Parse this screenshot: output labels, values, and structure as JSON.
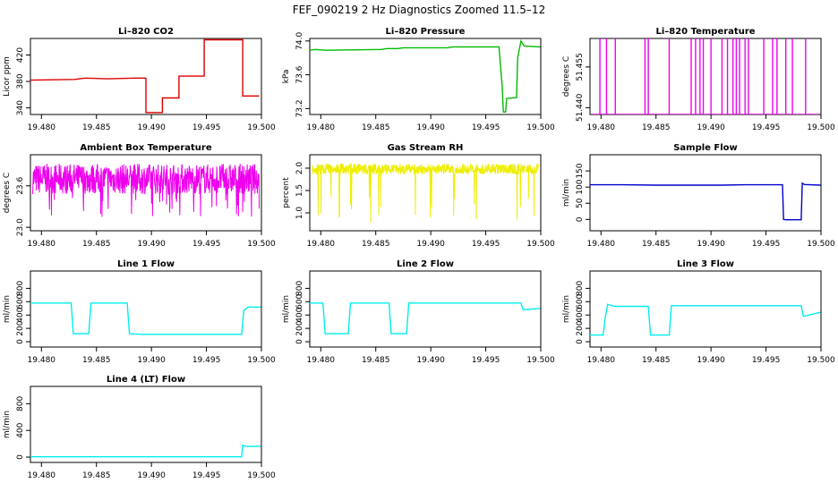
{
  "page": {
    "title": "FEF_090219  2 Hz Diagnostics Zoomed 11.5–12"
  },
  "chart_data": [
    {
      "type": "line",
      "title": "Li–820 CO2",
      "ylabel": "Licor ppm",
      "color": "#dd0000",
      "xlim": [
        19.479,
        19.5
      ],
      "ylim": [
        330,
        445
      ],
      "xticks": [
        "19.480",
        "19.485",
        "19.490",
        "19.495",
        "19.500"
      ],
      "yticks": [
        [
          "340",
          340
        ],
        [
          "380",
          380
        ],
        [
          "420",
          420
        ]
      ],
      "series": [
        {
          "x": [
            19.479,
            19.483,
            19.484,
            19.486,
            19.4885,
            19.4895,
            19.4895,
            19.491,
            19.491,
            19.4925,
            19.4925,
            19.4948,
            19.4948,
            19.4983,
            19.4983,
            19.4998
          ],
          "y": [
            382,
            383,
            385,
            384,
            385,
            385,
            333,
            333,
            355,
            355,
            388,
            388,
            443,
            443,
            358,
            358
          ]
        }
      ]
    },
    {
      "type": "line",
      "title": "Li–820 Pressure",
      "ylabel": "kPa",
      "color": "#00bb00",
      "xlim": [
        19.479,
        19.5
      ],
      "ylim": [
        73.13,
        74.03
      ],
      "xticks": [
        "19.480",
        "19.485",
        "19.490",
        "19.495",
        "19.500"
      ],
      "yticks": [
        [
          "73.2",
          73.2
        ],
        [
          "73.6",
          73.6
        ],
        [
          "74.0",
          74.0
        ]
      ],
      "series": [
        {
          "x": [
            19.479,
            19.4795,
            19.4805,
            19.4855,
            19.486,
            19.487,
            19.4875,
            19.49,
            19.4915,
            19.492,
            19.494,
            19.4962,
            19.4965,
            19.4966,
            19.4968,
            19.4969,
            19.4978,
            19.4979,
            19.4982,
            19.4985,
            19.49995
          ],
          "y": [
            73.89,
            73.9,
            73.89,
            73.9,
            73.91,
            73.91,
            73.92,
            73.92,
            73.92,
            73.93,
            73.93,
            73.93,
            73.45,
            73.16,
            73.16,
            73.32,
            73.33,
            73.8,
            74.0,
            73.94,
            73.93
          ]
        }
      ]
    },
    {
      "type": "line",
      "title": "Li–820 Temperature",
      "ylabel": "degrees C",
      "color": "#ee00ee",
      "xlim": [
        19.479,
        19.5
      ],
      "ylim": [
        51.4375,
        51.4655
      ],
      "xticks": [
        "19.480",
        "19.485",
        "19.490",
        "19.495",
        "19.500"
      ],
      "yticks": [
        [
          "51.440",
          51.44
        ],
        [
          "51.455",
          51.455
        ]
      ],
      "baseline": 51.4375,
      "spikes": [
        19.4799,
        19.4805,
        19.4813,
        19.484,
        19.4843,
        19.4862,
        19.4882,
        19.4886,
        19.489,
        19.4893,
        19.49,
        19.491,
        19.4915,
        19.492,
        19.4923,
        19.4926,
        19.4931,
        19.4934,
        19.4948,
        19.4956,
        19.496,
        19.4968,
        19.4974,
        19.4986
      ]
    },
    {
      "type": "line",
      "title": "Ambient Box Temperature",
      "ylabel": "degrees C",
      "color": "#ee00ee",
      "xlim": [
        19.479,
        19.5
      ],
      "ylim": [
        22.95,
        24.05
      ],
      "xticks": [
        "19.480",
        "19.485",
        "19.490",
        "19.495",
        "19.500"
      ],
      "yticks": [
        [
          "23.0",
          23.0
        ],
        [
          "23.6",
          23.6
        ]
      ],
      "noise": {
        "center": 23.7,
        "amp": 0.22,
        "seed": 7,
        "n": 700,
        "outlier": 0.55
      }
    },
    {
      "type": "line",
      "title": "Gas Stream RH",
      "ylabel": "percent",
      "color": "#eeee00",
      "xlim": [
        19.479,
        19.5
      ],
      "ylim": [
        0.6,
        2.3
      ],
      "xticks": [
        "19.480",
        "19.485",
        "19.490",
        "19.495",
        "19.500"
      ],
      "yticks": [
        [
          "1.0",
          1.0
        ],
        [
          "1.5",
          1.5
        ],
        [
          "2.0",
          2.0
        ]
      ],
      "noise": {
        "center": 1.98,
        "amp": 0.12,
        "seed": 11,
        "n": 700,
        "outlier": 1.2
      }
    },
    {
      "type": "line",
      "title": "Sample Flow",
      "ylabel": "ml/min",
      "color": "#0000cc",
      "xlim": [
        19.479,
        19.5
      ],
      "ylim": [
        -35,
        200
      ],
      "xticks": [
        "19.480",
        "19.485",
        "19.490",
        "19.495",
        "19.500"
      ],
      "yticks": [
        [
          "0",
          0
        ],
        [
          "50",
          50
        ],
        [
          "100",
          100
        ],
        [
          "150",
          150
        ]
      ],
      "series": [
        {
          "x": [
            19.479,
            19.482,
            19.485,
            19.488,
            19.491,
            19.493,
            19.4955,
            19.4965,
            19.4966,
            19.4968,
            19.4982,
            19.4983,
            19.4985,
            19.49995
          ],
          "y": [
            107,
            107,
            106,
            106,
            106,
            107,
            107,
            107,
            0,
            -1,
            -1,
            112,
            108,
            106
          ]
        }
      ]
    },
    {
      "type": "line",
      "title": "Line 1 Flow",
      "ylabel": "ml/min",
      "color": "#00eeee",
      "xlim": [
        19.479,
        19.5
      ],
      "ylim": [
        -80,
        1060
      ],
      "xticks": [
        "19.480",
        "19.485",
        "19.490",
        "19.495",
        "19.500"
      ],
      "yticks": [
        [
          "0",
          0
        ],
        [
          "200",
          200
        ],
        [
          "400",
          400
        ],
        [
          "600",
          600
        ],
        [
          "800",
          800
        ]
      ],
      "series": [
        {
          "x": [
            19.479,
            19.4827,
            19.4829,
            19.4843,
            19.4845,
            19.4878,
            19.488,
            19.4892,
            19.496,
            19.4982,
            19.4984,
            19.4988,
            19.49995
          ],
          "y": [
            580,
            580,
            120,
            120,
            580,
            580,
            120,
            110,
            110,
            110,
            470,
            520,
            520
          ]
        }
      ]
    },
    {
      "type": "line",
      "title": "Line 2 Flow",
      "ylabel": "ml/min",
      "color": "#00eeee",
      "xlim": [
        19.479,
        19.5
      ],
      "ylim": [
        -80,
        1060
      ],
      "xticks": [
        "19.480",
        "19.485",
        "19.490",
        "19.495",
        "19.500"
      ],
      "yticks": [
        [
          "0",
          0
        ],
        [
          "200",
          200
        ],
        [
          "400",
          400
        ],
        [
          "600",
          600
        ],
        [
          "800",
          800
        ]
      ],
      "series": [
        {
          "x": [
            19.479,
            19.4802,
            19.4804,
            19.4825,
            19.4827,
            19.4862,
            19.4864,
            19.4878,
            19.488,
            19.4982,
            19.4984,
            19.49995
          ],
          "y": [
            580,
            580,
            120,
            120,
            580,
            580,
            120,
            120,
            580,
            580,
            480,
            500
          ]
        }
      ]
    },
    {
      "type": "line",
      "title": "Line 3 Flow",
      "ylabel": "ml/min",
      "color": "#00eeee",
      "xlim": [
        19.479,
        19.5
      ],
      "ylim": [
        -80,
        1060
      ],
      "xticks": [
        "19.480",
        "19.485",
        "19.490",
        "19.495",
        "19.500"
      ],
      "yticks": [
        [
          "0",
          0
        ],
        [
          "200",
          200
        ],
        [
          "400",
          400
        ],
        [
          "600",
          600
        ],
        [
          "800",
          800
        ]
      ],
      "series": [
        {
          "x": [
            19.479,
            19.4802,
            19.4804,
            19.4806,
            19.4812,
            19.4843,
            19.4845,
            19.4862,
            19.4864,
            19.4982,
            19.4984,
            19.49995
          ],
          "y": [
            100,
            100,
            380,
            560,
            530,
            530,
            100,
            100,
            540,
            540,
            380,
            440
          ]
        }
      ]
    },
    {
      "type": "line",
      "title": "Line 4 (LT) Flow",
      "ylabel": "ml/min",
      "color": "#00eeee",
      "xlim": [
        19.479,
        19.5
      ],
      "ylim": [
        -80,
        1060
      ],
      "xticks": [
        "19.480",
        "19.485",
        "19.490",
        "19.495",
        "19.500"
      ],
      "yticks": [
        [
          "0",
          0
        ],
        [
          "400",
          400
        ],
        [
          "800",
          800
        ]
      ],
      "series": [
        {
          "x": [
            19.479,
            19.4982,
            19.4983,
            19.4986,
            19.49995
          ],
          "y": [
            5,
            5,
            180,
            160,
            160
          ]
        }
      ]
    }
  ]
}
